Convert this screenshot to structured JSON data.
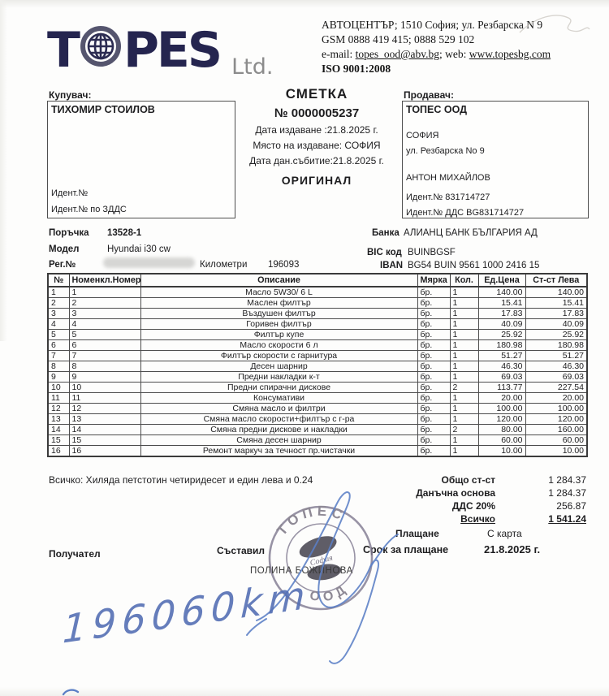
{
  "brand": {
    "name": "TOPES",
    "suffix": "Ltd."
  },
  "contact": {
    "line1": "АВТОЦЕНТЪР; 1510 София;  ул. Резбарска N 9",
    "line2": "GSM  0888 419 415; 0888 529 102",
    "email_label": "e-mail: ",
    "email": "topes_ood@abv.bg",
    "web_label": "; web:  ",
    "web": "www.topesbg.com",
    "iso": "ISO 9001:2008"
  },
  "buyer": {
    "label": "Купувач:",
    "name": "ТИХОМИР СТОИЛОВ",
    "ident_label": "Идент.№",
    "vat_label": "Идент.№ по ЗДДС"
  },
  "invoice": {
    "title": "СМЕТКА",
    "number": "№ 0000005237",
    "issue_date": "Дата издаване :21.8.2025 г.",
    "place": "Място на издаване: СОФИЯ",
    "tax_event": "Дата дан.събитие:21.8.2025 г.",
    "original": "ОРИГИНАЛ"
  },
  "seller": {
    "label": "Продавач:",
    "name": "ТОПЕС ООД",
    "city": "СОФИЯ",
    "address": "ул. Резбарска No 9",
    "person": "АНТОН МИХАЙЛОВ",
    "ident": "Идент.№ 831714727",
    "vat": "Идент.№ ДДС BG831714727"
  },
  "order": {
    "order_label": "Поръчка",
    "order_no": "13528-1",
    "model_label": "Модел",
    "model": "Hyundai i30 cw",
    "reg_label": "Рег.№",
    "km_label": "Километри",
    "km": "196093"
  },
  "bank": {
    "bank_label": "Банка",
    "bank": "АЛИАНЦ БАНК БЪЛГАРИЯ АД",
    "bic_label": "BIC код",
    "bic": "BUINBGSF",
    "iban_label": "IBAN",
    "iban": "BG54 BUIN 9561 1000 2416 15"
  },
  "table": {
    "headers": [
      "№",
      "Номенкл.Номер",
      "Описание",
      "Мярка",
      "Кол.",
      "Ед.Цена",
      "Ст-ст Лева"
    ],
    "rows": [
      {
        "no": "1",
        "nom": "1",
        "desc": "Масло 5W30/ 6 L",
        "unit": "бр.",
        "qty": "1",
        "price": "140.00",
        "total": "140.00"
      },
      {
        "no": "2",
        "nom": "2",
        "desc": "Маслен филтър",
        "unit": "бр.",
        "qty": "1",
        "price": "15.41",
        "total": "15.41"
      },
      {
        "no": "3",
        "nom": "3",
        "desc": "Въздушен филтър",
        "unit": "бр.",
        "qty": "1",
        "price": "17.83",
        "total": "17.83"
      },
      {
        "no": "4",
        "nom": "4",
        "desc": "Горивен филтър",
        "unit": "бр.",
        "qty": "1",
        "price": "40.09",
        "total": "40.09"
      },
      {
        "no": "5",
        "nom": "5",
        "desc": "Филтър купе",
        "unit": "бр.",
        "qty": "1",
        "price": "25.92",
        "total": "25.92"
      },
      {
        "no": "6",
        "nom": "6",
        "desc": "Масло скорости 6 л",
        "unit": "бр.",
        "qty": "1",
        "price": "180.98",
        "total": "180.98"
      },
      {
        "no": "7",
        "nom": "7",
        "desc": "Филтър скорости с гарнитура",
        "unit": "бр.",
        "qty": "1",
        "price": "51.27",
        "total": "51.27"
      },
      {
        "no": "8",
        "nom": "8",
        "desc": "Десен шарнир",
        "unit": "бр.",
        "qty": "1",
        "price": "46.30",
        "total": "46.30"
      },
      {
        "no": "9",
        "nom": "9",
        "desc": "Предни накладки к-т",
        "unit": "бр.",
        "qty": "1",
        "price": "69.03",
        "total": "69.03"
      },
      {
        "no": "10",
        "nom": "10",
        "desc": "Предни спирачни дискове",
        "unit": "бр.",
        "qty": "2",
        "price": "113.77",
        "total": "227.54"
      },
      {
        "no": "11",
        "nom": "11",
        "desc": "Консумативи",
        "unit": "бр.",
        "qty": "1",
        "price": "20.00",
        "total": "20.00"
      },
      {
        "no": "12",
        "nom": "12",
        "desc": "Смяна масло и филтри",
        "unit": "бр.",
        "qty": "1",
        "price": "100.00",
        "total": "100.00"
      },
      {
        "no": "13",
        "nom": "13",
        "desc": "Смяна масло скорости+филтър с г-ра",
        "unit": "бр.",
        "qty": "1",
        "price": "120.00",
        "total": "120.00"
      },
      {
        "no": "14",
        "nom": "14",
        "desc": "Смяна предни дискове и накладки",
        "unit": "бр.",
        "qty": "2",
        "price": "80.00",
        "total": "160.00"
      },
      {
        "no": "15",
        "nom": "15",
        "desc": "Смяна десен шарнир",
        "unit": "бр.",
        "qty": "1",
        "price": "60.00",
        "total": "60.00"
      },
      {
        "no": "16",
        "nom": "16",
        "desc": "Ремонт маркуч за течност пр.чистачки",
        "unit": "бр.",
        "qty": "1",
        "price": "10.00",
        "total": "10.00"
      }
    ]
  },
  "totals": {
    "in_words": "Всичко: Хиляда петстотин четиридесет и един лева и 0.24",
    "rows": [
      {
        "label": "Общо ст-ст",
        "value": "1 284.37"
      },
      {
        "label": "Данъчна основа",
        "value": "1 284.37"
      },
      {
        "label": "ДДС 20%",
        "value": "256.87"
      },
      {
        "label": "Всичко",
        "value": "1 541.24"
      }
    ]
  },
  "footer": {
    "payment_label": "Плащане",
    "payment_value": "С карта",
    "composer_label": "Съставил",
    "composer_name": "ПОЛИНА БОЖИНОВА",
    "due_label": "Срок за плащане",
    "due_value": "21.8.2025 г.",
    "recipient_label": "Получател"
  },
  "stamp": {
    "top": "ТОПЕС",
    "bottom": "ООД",
    "center": "София"
  },
  "handwriting": {
    "mileage": "196060km"
  },
  "colors": {
    "logo_navy": "#25254f",
    "stamp_gray": "#7b7489",
    "pen_blue": "#5b7fc6",
    "ink": "#1d1d1f"
  }
}
